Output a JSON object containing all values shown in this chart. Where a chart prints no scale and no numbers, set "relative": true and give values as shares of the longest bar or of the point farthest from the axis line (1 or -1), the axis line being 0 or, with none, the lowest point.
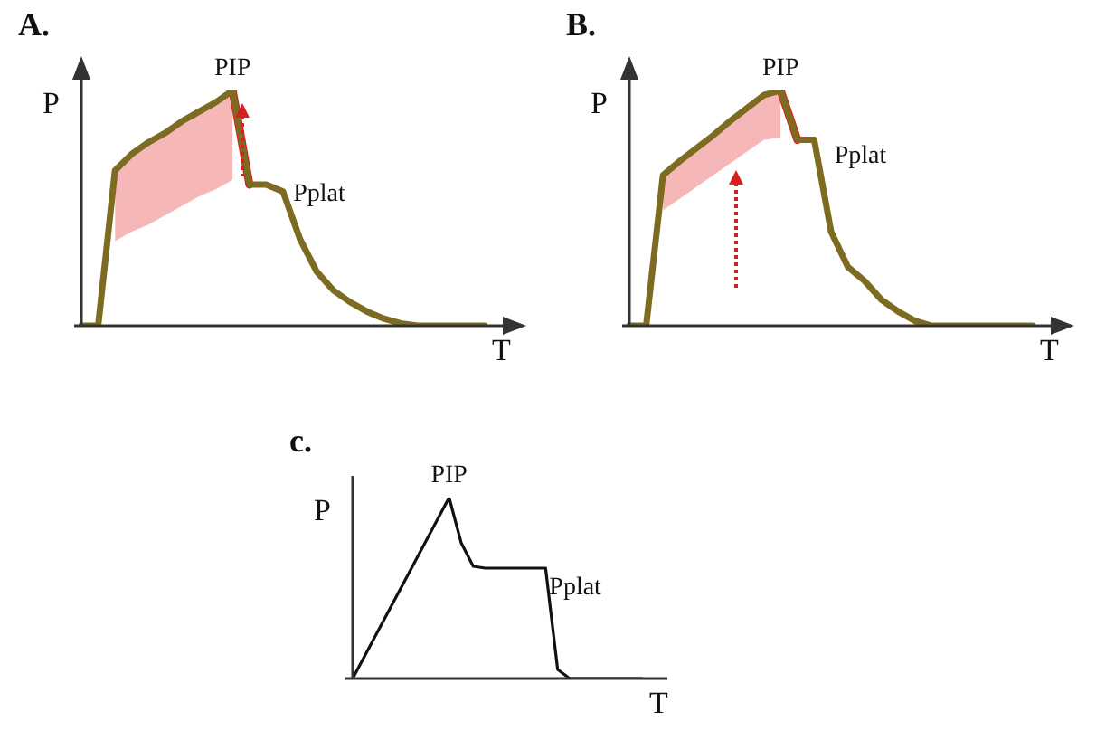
{
  "chart_data": [
    {
      "type": "line",
      "title": "A.",
      "xlabel": "T",
      "ylabel": "P",
      "relative": true,
      "tick_labels": false,
      "categories": [
        null,
        null,
        null,
        null,
        null,
        null,
        null,
        null,
        null,
        null,
        null,
        null,
        null,
        null,
        null,
        null,
        null,
        null,
        null,
        null,
        null,
        null,
        null,
        null,
        null
      ],
      "series": [
        {
          "color": "#7d6b22",
          "values": [
            0,
            0,
            0.66,
            0.73,
            0.78,
            0.82,
            0.87,
            0.91,
            0.95,
            1.0,
            0.6,
            0.6,
            0.57,
            0.37,
            0.23,
            0.15,
            0.1,
            0.06,
            0.03,
            0.01,
            0,
            0,
            0,
            0,
            0
          ],
          "lower": [
            null,
            null,
            0.36,
            0.4,
            0.43,
            0.47,
            0.51,
            0.55,
            0.58,
            0.62,
            null,
            null,
            null,
            null,
            null,
            null,
            null,
            null,
            null,
            null,
            null,
            null,
            null,
            null,
            null
          ],
          "upper": [
            null,
            null,
            0.66,
            0.73,
            0.78,
            0.82,
            0.87,
            0.91,
            0.95,
            1.0,
            null,
            null,
            null,
            null,
            null,
            null,
            null,
            null,
            null,
            null,
            null,
            null,
            null,
            null,
            null
          ]
        },
        {
          "color": "#e01b1b",
          "values": [
            null,
            null,
            null,
            null,
            null,
            null,
            null,
            null,
            null,
            1.0,
            0.6,
            null,
            null,
            null,
            null,
            null,
            null,
            null,
            null,
            null,
            null,
            null,
            null,
            null,
            null
          ]
        }
      ],
      "annotations": [
        {
          "text": "PIP",
          "y": 1.0
        },
        "Pplat"
      ]
    },
    {
      "type": "line",
      "title": "B.",
      "xlabel": "T",
      "ylabel": "P",
      "relative": true,
      "tick_labels": false,
      "categories": [
        null,
        null,
        null,
        null,
        null,
        null,
        null,
        null,
        null,
        null,
        null,
        null,
        null,
        null,
        null,
        null,
        null,
        null,
        null,
        null,
        null,
        null,
        null,
        null,
        null
      ],
      "series": [
        {
          "color": "#7d6b22",
          "values": [
            0,
            0,
            0.64,
            0.7,
            0.755,
            0.81,
            0.87,
            0.925,
            0.98,
            1.0,
            0.79,
            0.79,
            0.4,
            0.25,
            0.19,
            0.11,
            0.06,
            0.02,
            0,
            0,
            0,
            0,
            0,
            0,
            0
          ],
          "lower": [
            null,
            null,
            0.49,
            0.54,
            0.59,
            0.64,
            0.69,
            0.74,
            0.79,
            0.8,
            null,
            null,
            null,
            null,
            null,
            null,
            null,
            null,
            null,
            null,
            null,
            null,
            null,
            null,
            null
          ],
          "upper": [
            null,
            null,
            0.64,
            0.7,
            0.755,
            0.81,
            0.87,
            0.925,
            0.98,
            1.0,
            null,
            null,
            null,
            null,
            null,
            null,
            null,
            null,
            null,
            null,
            null,
            null,
            null,
            null,
            null
          ]
        },
        {
          "color": "#e01b1b",
          "values": [
            null,
            null,
            null,
            null,
            null,
            null,
            null,
            null,
            null,
            1.0,
            0.79,
            null,
            null,
            null,
            null,
            null,
            null,
            null,
            null,
            null,
            null,
            null,
            null,
            null,
            null
          ]
        }
      ],
      "annotations": [
        {
          "text": "PIP",
          "y": 1.0
        },
        "Pplat"
      ]
    },
    {
      "type": "line",
      "title": "c.",
      "xlabel": "T",
      "ylabel": "P",
      "relative": true,
      "tick_labels": false,
      "categories": [
        null,
        null,
        null,
        null,
        null,
        null,
        null,
        null,
        null,
        null,
        null,
        null,
        null,
        null,
        null,
        null,
        null,
        null,
        null,
        null,
        null,
        null,
        null,
        null,
        null
      ],
      "series": [
        {
          "color": "#111111",
          "values": [
            0,
            0.125,
            0.25,
            0.375,
            0.5,
            0.625,
            0.75,
            0.875,
            1.0,
            0.75,
            0.62,
            0.61,
            0.61,
            0.61,
            0.61,
            0.61,
            0.61,
            0.05,
            0,
            0,
            0,
            0,
            0,
            0,
            0
          ]
        }
      ],
      "annotations": [
        {
          "text": "PIP",
          "y": 1.0
        },
        "Pplat"
      ]
    }
  ]
}
